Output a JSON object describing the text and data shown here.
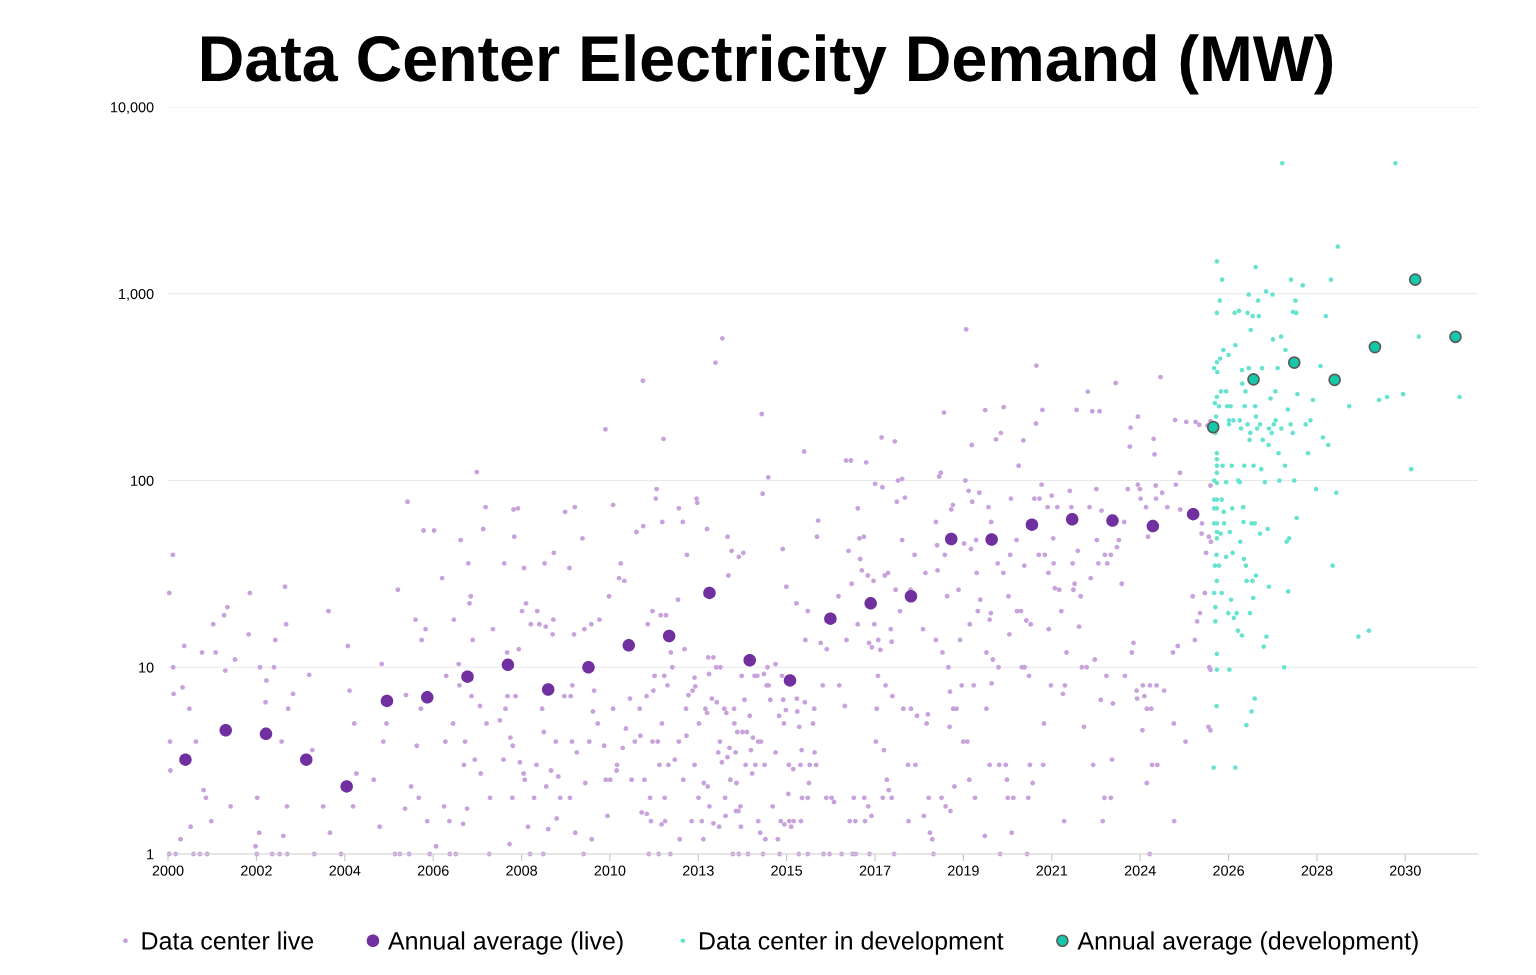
{
  "chart_data": {
    "type": "scatter",
    "title": "Data Center Electricity Demand (MW)",
    "log": "y",
    "grid": "y",
    "legend": "bottom",
    "marker": "circle",
    "xlim": [
      "2000-01-01",
      "2032-07-01"
    ],
    "ylim": [
      1,
      10000
    ],
    "xticks": [
      {
        "value": "2000-01-01",
        "label": "2000"
      },
      {
        "value": "2002-03-12",
        "label": "2002"
      },
      {
        "value": "2004-05-21",
        "label": "2004"
      },
      {
        "value": "2006-07-31",
        "label": "2006"
      },
      {
        "value": "2008-10-09",
        "label": "2008"
      },
      {
        "value": "2010-12-18",
        "label": "2010"
      },
      {
        "value": "2013-02-26",
        "label": "2013"
      },
      {
        "value": "2015-05-07",
        "label": "2015"
      },
      {
        "value": "2017-07-17",
        "label": "2017"
      },
      {
        "value": "2019-09-25",
        "label": "2019"
      },
      {
        "value": "2021-12-04",
        "label": "2021"
      },
      {
        "value": "2024-02-13",
        "label": "2024"
      },
      {
        "value": "2026-04-24",
        "label": "2026"
      },
      {
        "value": "2028-07-03",
        "label": "2028"
      },
      {
        "value": "2030-09-11",
        "label": "2030"
      }
    ],
    "yticks": [
      1,
      10,
      100,
      {
        "value": 1000,
        "label": "1,000"
      },
      {
        "value": 10000,
        "label": "10,000"
      }
    ],
    "series": [
      {
        "name": "Data center live",
        "color": "#c8a2dc",
        "x": [
          "2000-01-12",
          "2000-02-14",
          "2000-02-17",
          "2000-02-21",
          "2000-01-19",
          "2000-01-23",
          "2000-05-27",
          "2000-05-12",
          "2000-07-13",
          "2000-04-24",
          "2000-07-24",
          "2000-01-12",
          "2000-08-19",
          "2001-02-14",
          "2001-06-22",
          "2001-05-23",
          "2000-11-04",
          "2001-03-08",
          "2000-09-10",
          "2000-11-18",
          "2000-12-10",
          "2001-01-27",
          "2001-07-21",
          "2001-08-30",
          "2001-06-03",
          "2002-01-12",
          "2002-01-01",
          "2002-04-13",
          "2002-06-11",
          "2002-06-03",
          "2002-03-19",
          "2002-04-06",
          "2002-03-04",
          "2002-08-01",
          "2002-11-26",
          "2002-12-06",
          "2002-08-30",
          "2002-08-19",
          "2002-12-25",
          "2003-02-07",
          "2002-10-27",
          "2002-11-11",
          "2002-12-14",
          "2003-07-03",
          "2003-08-01",
          "2003-12-25",
          "2003-11-07",
          "2004-01-08",
          "2004-04-17",
          "2004-06-18",
          "2004-07-03",
          "2004-08-15",
          "2004-08-04",
          "2004-09-03",
          "2005-02-07",
          "2005-04-21",
          "2005-04-02",
          "2005-05-05",
          "2005-06-03",
          "2005-08-19",
          "2005-09-14",
          "2005-12-10",
          "2005-11-26",
          "2005-11-18",
          "2006-02-21",
          "2006-04-17",
          "2006-05-05",
          "2006-08-08",
          "2006-05-23",
          "2006-04-10",
          "2006-03-04",
          "2006-01-12",
          "2006-03-22",
          "2006-06-07",
          "2006-08-26",
          "2006-10-20",
          "2007-02-03",
          "2006-11-26",
          "2006-11-18",
          "2007-01-27",
          "2006-11-07",
          "2006-12-25",
          "2007-04-06",
          "2007-06-14",
          "2007-06-25",
          "2007-07-06",
          "2007-07-24",
          "2007-03-19",
          "2007-03-26",
          "2007-07-13",
          "2007-05-16",
          "2007-05-05",
          "2007-06-03",
          "2007-04-28",
          "2007-08-30",
          "2007-11-18",
          "2007-10-27",
          "2008-01-23",
          "2007-09-28",
          "2007-11-26",
          "2007-08-12",
          "2007-10-05",
          "2007-12-21",
          "2008-05-05",
          "2008-04-28",
          "2007-12-28",
          "2000-03-11",
          "2000-10-16",
          "2000-12-21",
          "2002-03-15",
          "2002-10-09",
          "2002-12-17",
          "2003-08-19",
          "2005-10-02",
          "2005-12-25",
          "2006-06-29",
          "2006-12-28",
          "2007-02-21",
          "2010-11-07",
          "2011-10-13",
          "2012-04-17",
          "2013-08-01",
          "2013-10-02",
          "2014-09-24",
          "2015-10-13",
          "2016-10-27",
          "2016-12-10",
          "2014-11-22",
          "2014-10-02",
          "2012-02-14",
          "2012-02-07",
          "2008-07-28",
          "2008-09-06",
          "2009-11-07",
          "2010-02-03",
          "2011-01-16",
          "2008-08-04",
          "2008-10-31",
          "2009-05-05",
          "2009-07-28",
          "2009-12-17",
          "2010-04-13",
          "2011-08-15",
          "2011-10-16",
          "2012-04-06",
          "2012-10-09",
          "2012-09-03",
          "2013-02-10",
          "2013-02-17",
          "2013-05-16",
          "2012-11-15",
          "2011-03-26",
          "2011-04-28",
          "2011-03-11",
          "2010-12-10",
          "2013-11-18",
          "2013-12-25",
          "2014-04-10",
          "2014-02-28",
          "2013-11-26",
          "2015-04-02",
          "2015-05-05",
          "2016-02-17",
          "2016-02-07",
          "2017-02-10",
          "2016-11-18",
          "2016-12-17",
          "2016-10-31",
          "2016-08-19",
          "2015-08-04",
          "2015-11-15",
          "2015-10-24",
          "2016-03-11",
          "2016-05-05",
          "2012-08-26",
          "2012-03-22",
          "2012-05-09",
          "2011-11-26",
          "2012-01-08",
          "2010-09-14",
          "2010-07-03",
          "2010-05-01",
          "2010-01-27",
          "2009-07-17",
          "2009-07-24",
          "2009-02-28",
          "2008-11-18",
          "2008-10-13",
          "2009-01-01",
          "2009-03-19",
          "2009-05-16",
          "2008-09-14",
          "2008-05-31",
          "2008-03-26",
          "2008-06-03",
          "2008-08-15",
          "2008-05-16",
          "2008-06-29",
          "2008-07-21",
          "2008-09-24",
          "2008-10-27",
          "2008-11-07",
          "2009-02-21",
          "2009-07-03",
          "2009-09-06",
          "2009-05-20",
          "2008-12-06",
          "2008-06-22",
          "2008-07-17",
          "2009-01-30",
          "2009-09-24",
          "2009-12-21",
          "2009-06-07",
          "2009-08-23",
          "2010-02-07",
          "2010-07-06",
          "2008-12-25",
          "2009-04-24",
          "2010-04-24",
          "2009-08-15",
          "2010-01-08",
          "2010-02-21",
          "2009-04-13",
          "2009-04-28",
          "2009-10-31",
          "2009-12-28",
          "2010-01-12",
          "2010-06-14",
          "2010-05-09",
          "2010-07-17",
          "2010-07-28",
          "2010-08-30",
          "2010-10-27",
          "2010-11-11",
          "2010-12-21",
          "2010-11-26",
          "2011-01-16",
          "2011-02-21",
          "2011-02-17",
          "2011-04-13",
          "2011-06-18",
          "2011-05-12",
          "2011-07-03",
          "2011-09-14",
          "2011-09-21",
          "2011-08-01",
          "2011-11-15",
          "2012-01-16",
          "2012-01-27",
          "2012-04-02",
          "2012-01-08",
          "2012-02-25",
          "2012-03-11",
          "2011-10-27",
          "2011-10-02",
          "2011-11-18",
          "2011-12-25",
          "2012-03-30",
          "2012-05-01",
          "2011-12-17",
          "2012-04-28",
          "2012-09-10",
          "2011-12-06",
          "2012-03-04",
          "2012-06-18",
          "2012-04-24",
          "2012-05-23",
          "2012-06-22",
          "2012-07-06",
          "2012-09-03",
          "2012-05-31",
          "2012-07-28",
          "2012-10-13",
          "2012-11-07",
          "2012-10-24",
          "2012-11-11",
          "2012-11-29",
          "2013-01-05",
          "2013-01-23",
          "2013-01-30",
          "2013-01-23",
          "2013-03-04",
          "2012-12-28",
          "2013-03-30",
          "2013-04-13",
          "2013-02-28",
          "2013-05-01",
          "2013-05-16",
          "2013-04-17",
          "2013-05-23",
          "2013-06-07",
          "2013-05-27",
          "2013-07-13",
          "2013-06-03",
          "2013-06-29",
          "2013-07-13",
          "2013-08-12",
          "2013-08-26",
          "2013-09-03",
          "2013-09-10",
          "2013-08-08",
          "2013-09-14",
          "2013-09-28",
          "2013-10-20",
          "2013-11-07",
          "2013-10-31",
          "2013-10-27",
          "2013-11-18",
          "2013-12-06",
          "2013-12-14",
          "2014-01-16",
          "2014-01-19",
          "2014-01-30",
          "2014-02-07",
          "2014-02-03",
          "2014-02-25",
          "2014-03-15",
          "2014-03-19",
          "2014-01-05",
          "2014-02-28",
          "2014-05-23",
          "2014-02-14",
          "2014-04-02",
          "2014-05-12",
          "2014-07-06",
          "2014-08-23",
          "2014-09-17",
          "2014-06-18",
          "2014-06-29",
          "2014-05-01",
          "2014-07-28",
          "2014-10-20",
          "2014-06-07",
          "2014-04-21",
          "2014-03-26",
          "2014-07-21",
          "2014-08-15",
          "2014-10-13",
          "2014-11-07",
          "2014-11-26",
          "2014-11-15",
          "2015-01-27",
          "2014-12-10",
          "2015-01-27",
          "2015-01-01",
          "2014-09-10",
          "2014-10-27",
          "2014-08-23",
          "2014-10-05",
          "2015-02-28",
          "2015-02-17",
          "2015-03-04",
          "2015-03-15",
          "2015-04-17",
          "2015-05-31",
          "2015-06-18",
          "2015-07-10",
          "2015-09-14",
          "2015-05-23",
          "2015-03-26",
          "2015-04-06",
          "2015-05-01",
          "2015-04-13",
          "2015-05-27",
          "2015-07-06",
          "2015-08-08",
          "2015-08-12",
          "2015-08-30",
          "2015-09-21",
          "2015-09-10",
          "2015-09-24",
          "2015-10-20",
          "2015-11-15",
          "2015-11-26",
          "2016-01-16",
          "2015-12-03",
          "2016-01-01",
          "2016-01-12",
          "2016-01-30",
          "2016-03-30",
          "2016-05-01",
          "2016-06-18",
          "2016-07-10",
          "2016-08-26",
          "2016-10-16",
          "2016-11-29",
          "2017-01-05",
          "2015-08-26",
          "2015-11-15",
          "2016-04-06",
          "2016-05-31",
          "2016-09-17",
          "2016-12-25",
          "2019-10-20",
          "2021-07-17",
          "2024-08-15",
          "2023-07-06",
          "2022-10-27",
          "2019-04-02",
          "2020-04-10",
          "2020-09-24",
          "2021-09-10",
          "2022-07-17",
          "2022-12-06",
          "2023-02-10",
          "2024-01-23",
          "2021-07-13",
          "2020-08-30",
          "2017-09-14",
          "2018-01-12",
          "2019-12-10",
          "2020-07-17",
          "2021-03-22",
          "2023-11-18",
          "2023-11-11",
          "2024-12-25",
          "2025-04-06",
          "2025-06-29",
          "2025-08-01",
          "2024-06-14",
          "2024-06-22",
          "2017-04-28",
          "2019-03-04",
          "2019-02-17",
          "2018-03-19",
          "2018-02-10",
          "2019-10-13",
          "2017-07-17",
          "2017-09-21",
          "2018-04-13",
          "2018-01-30",
          "2019-11-11",
          "2019-12-14",
          "2020-02-17",
          "2020-05-09",
          "2019-06-22",
          "2019-06-07",
          "2019-01-19",
          "2020-06-03",
          "2017-04-06",
          "2017-02-25",
          "2018-03-19",
          "2019-01-30",
          "2019-04-10",
          "2019-10-02",
          "2019-12-03",
          "2020-01-19",
          "2021-01-19",
          "2020-11-29",
          "2021-02-07",
          "2021-06-29",
          "2021-08-15",
          "2021-09-03",
          "2021-10-27",
          "2021-12-03",
          "2022-01-23",
          "2021-12-17",
          "2022-05-16",
          "2022-05-31",
          "2023-01-12",
          "2022-11-11",
          "2023-02-28",
          "2023-09-21",
          "2023-10-24",
          "2024-01-23",
          "2024-02-10",
          "2024-02-17",
          "2024-04-06",
          "2024-07-03",
          "2024-07-06",
          "2024-08-30",
          "2024-10-16",
          "2025-01-01",
          "2025-02-07",
          "2025-02-10",
          "2025-08-23",
          "2025-10-27",
          "2024-04-24",
          "2023-08-04",
          "2023-05-23",
          "2023-01-16",
          "2023-03-30",
          "2023-07-17",
          "2023-08-30",
          "2023-01-30",
          "2023-04-21",
          "2022-11-22",
          "2022-08-23",
          "2022-06-29",
          "2022-06-18",
          "2022-06-11",
          "2022-07-28",
          "2021-12-21",
          "2021-11-04",
          "2022-01-01",
          "2022-02-10",
          "2022-02-28",
          "2021-10-02",
          "2021-08-08",
          "2021-03-30",
          "2020-11-22",
          "2020-11-07",
          "2020-09-21",
          "2020-08-01",
          "2020-05-31",
          "2020-05-20",
          "2020-02-25",
          "2020-02-03",
          "2020-01-23",
          "2019-08-12",
          "2019-05-01",
          "2019-02-03",
          "2019-01-19",
          "2018-10-16",
          "2018-07-10",
          "2018-06-03",
          "2018-01-19",
          "2018-02-28",
          "2017-10-13",
          "2017-11-11",
          "2017-05-12",
          "2017-03-19",
          "2017-03-04",
          "2017-07-03",
          "2017-07-10",
          "2017-05-23",
          "2017-06-18",
          "2017-08-15",
          "2017-09-03",
          "2017-12-06",
          "2017-12-14",
          "2017-02-10",
          "2018-09-24",
          "2019-11-22",
          "2019-08-26",
          "2020-04-21",
          "2020-06-18",
          "2020-08-08",
          "2020-11-15",
          "2021-01-23",
          "2021-02-28",
          "2021-04-17",
          "2021-05-27",
          "2021-11-07",
          "2022-04-17",
          "2022-08-08",
          "2022-09-03",
          "2022-10-16",
          "2022-12-28",
          "2023-11-29",
          "2023-12-14",
          "2024-12-06",
          "2025-01-19",
          "2025-03-30",
          "2025-06-22",
          "2024-12-14",
          "2025-10-31",
          "2025-10-24",
          "2017-08-12",
          "2017-10-20",
          "2017-12-21",
          "2017-08-01",
          "2018-03-30",
          "2018-06-07",
          "2018-08-01",
          "2018-11-07",
          "2018-10-27",
          "2017-07-24",
          "2017-10-05",
          "2017-10-31",
          "2017-11-18",
          "2017-09-24",
          "2017-12-14",
          "2017-04-10",
          "2017-05-16",
          "2017-06-14",
          "2017-01-19",
          "2017-04-17",
          "2017-01-23",
          "2017-05-27",
          "2018-01-05",
          "2018-05-12",
          "2018-07-17",
          "2018-05-16",
          "2018-10-02",
          "2018-11-26",
          "2018-12-17",
          "2018-12-28",
          "2018-11-15",
          "2019-03-11",
          "2019-04-17",
          "2019-05-31",
          "2019-05-23",
          "2019-05-27",
          "2019-05-12",
          "2019-06-25",
          "2019-07-24",
          "2019-07-06",
          "2019-03-19",
          "2019-09-10",
          "2019-09-24",
          "2019-10-31",
          "2019-11-18",
          "2020-01-08",
          "2019-12-28",
          "2020-04-21",
          "2020-06-07",
          "2020-04-06",
          "2020-05-20",
          "2020-08-23",
          "2020-08-15",
          "2020-10-13",
          "2020-10-24",
          "2020-10-31",
          "2020-12-21",
          "2020-12-06",
          "2021-03-08",
          "2021-04-02",
          "2021-05-12",
          "2021-05-20",
          "2021-05-05",
          "2021-06-14",
          "2021-04-24",
          "2021-09-17",
          "2021-09-24",
          "2021-11-26",
          "2022-04-02",
          "2022-03-15",
          "2022-03-26",
          "2022-09-21",
          "2022-12-14",
          "2023-02-21",
          "2023-04-13",
          "2023-06-11",
          "2023-06-03",
          "2023-03-26",
          "2023-05-23",
          "2023-03-11",
          "2023-09-28",
          "2024-01-12",
          "2024-03-08",
          "2024-03-22",
          "2024-01-16",
          "2024-04-13",
          "2024-05-23",
          "2024-05-12",
          "2024-07-10",
          "2024-09-17",
          "2024-03-04",
          "2024-05-31",
          "2024-07-17",
          "2024-04-13",
          "2024-05-09",
          "2024-12-17",
          "2025-11-11",
          "2025-10-16",
          "2025-11-11",
          "2025-08-26",
          "2025-11-15",
          "2025-10-02",
          "2025-06-03",
          "2025-09-21",
          "2025-08-08",
          "2025-07-13",
          "2025-11-11",
          "2025-11-11"
        ],
        "values": [
          25,
          40,
          10,
          7.2,
          4,
          2.8,
          13,
          7.8,
          6,
          1.2,
          1.4,
          1,
          1,
          17,
          21,
          19,
          12,
          12,
          4,
          2.2,
          2,
          1.5,
          1.8,
          11,
          9.6,
          25,
          15,
          10,
          8.5,
          6.5,
          2,
          1.3,
          1.1,
          1,
          27,
          17,
          14,
          10,
          6,
          7.2,
          4,
          1.25,
          1.8,
          9.1,
          3.6,
          20,
          1.8,
          1.3,
          1,
          13,
          7.5,
          5,
          1.8,
          2.7,
          2.5,
          10.4,
          1.4,
          4,
          5,
          1,
          26,
          77,
          7.1,
          1.75,
          18,
          14,
          54,
          54,
          16,
          6,
          3.8,
          2.3,
          2,
          1.5,
          1.1,
          30,
          18,
          9,
          4,
          5,
          1.8,
          1.5,
          48,
          36,
          22,
          24,
          14,
          10.4,
          8,
          7,
          4,
          3,
          1.75,
          1.45,
          111,
          72,
          55,
          16,
          6.2,
          5,
          3.2,
          2.7,
          1,
          36,
          3.2,
          2,
          1,
          1,
          1,
          1,
          1,
          1,
          1,
          1,
          1,
          1,
          1,
          1,
          188,
          342,
          167,
          428,
          577,
          227,
          143,
          128,
          128,
          104,
          85,
          90,
          80,
          70,
          71,
          68,
          72,
          74,
          50,
          34,
          36,
          41,
          34,
          49,
          53,
          57,
          60,
          60,
          71,
          80,
          76,
          55,
          40,
          36,
          29,
          30,
          24,
          50,
          42,
          41,
          39,
          31,
          43,
          27,
          61,
          50,
          71,
          42,
          28,
          14,
          24,
          22,
          20,
          14,
          13.5,
          12.5,
          23,
          19,
          19,
          17,
          20,
          18,
          17,
          16,
          15,
          15,
          18,
          20,
          22,
          20,
          17,
          17,
          16.5,
          12.5,
          12,
          5.2,
          7,
          7,
          6,
          4.2,
          3.8,
          3.1,
          2.7,
          2.5,
          3,
          2.8,
          2.6,
          2.3,
          1.4,
          1.13,
          2,
          2,
          2,
          2,
          1.36,
          1.55,
          1.3,
          1.2,
          1,
          1,
          1,
          4,
          4,
          3.5,
          6,
          4.5,
          7,
          7,
          8,
          4,
          2.4,
          5.8,
          7.5,
          5,
          3.8,
          2.5,
          2.5,
          1.6,
          6,
          3,
          2.8,
          3.7,
          6.8,
          4.7,
          2.5,
          6,
          4.3,
          4,
          7,
          7.5,
          9,
          5,
          4,
          4,
          3,
          2.5,
          1.67,
          1.64,
          1.5,
          1.44,
          1.5,
          2,
          2,
          1.2,
          1,
          1,
          1,
          9,
          8,
          12,
          10,
          4,
          3,
          3.2,
          2.5,
          6,
          12.5,
          4.3,
          7.1,
          7.5,
          8.8,
          7.9,
          3,
          5,
          1.5,
          1.5,
          1.2,
          2,
          6,
          5.7,
          2.4,
          2.3,
          1.8,
          11.3,
          11.3,
          9.2,
          6.8,
          1.46,
          6.5,
          3.5,
          1.4,
          4,
          10,
          10,
          3.1,
          6,
          5.7,
          1.6,
          2,
          3.3,
          3.7,
          2.5,
          6,
          5,
          3.5,
          2.4,
          1.7,
          1.7,
          1.8,
          1.4,
          1,
          1,
          1,
          4.5,
          4.5,
          4.5,
          4.2,
          4,
          4,
          3.6,
          2.7,
          3,
          3,
          3,
          5.5,
          6.7,
          9,
          9,
          9,
          9.2,
          8,
          8,
          10,
          10.4,
          6.7,
          3.5,
          1.8,
          1.3,
          1.2,
          1.5,
          1,
          5.5,
          1.2,
          1,
          1.5,
          1.44,
          1.5,
          1.4,
          1.5,
          1.5,
          2.1,
          9,
          6.7,
          5.9,
          5,
          3,
          2.85,
          6.8,
          5.8,
          4.8,
          3.6,
          3,
          2,
          6.5,
          2,
          2.4,
          3.5,
          3,
          5,
          6,
          3,
          8,
          2,
          2,
          1.9,
          8,
          6.2,
          1.5,
          2,
          1,
          1,
          1,
          1,
          1,
          1,
          645,
          412,
          358,
          333,
          299,
          231,
          238,
          247,
          239,
          239,
          235,
          235,
          220,
          202,
          180,
          170,
          162,
          155,
          166,
          164,
          192,
          152,
          211,
          206,
          206,
          199,
          167,
          138,
          125,
          110,
          105,
          102,
          100,
          100,
          96,
          92,
          81,
          77,
          88,
          77,
          86,
          72,
          74,
          70,
          60,
          60,
          50,
          49,
          48,
          45,
          40,
          46,
          43,
          48,
          48,
          80,
          120,
          80,
          80,
          95,
          72,
          83,
          72,
          49,
          88,
          72,
          90,
          72,
          69,
          60,
          90,
          95,
          90,
          80,
          72,
          94,
          80,
          86,
          72,
          95,
          110,
          70,
          52,
          50,
          50,
          48,
          40,
          48,
          40,
          44,
          28,
          36,
          36,
          30,
          24,
          28,
          26,
          36,
          42,
          36,
          32,
          26.5,
          26,
          20,
          40,
          40,
          35,
          40,
          24,
          32,
          36,
          19.5,
          18,
          23,
          20,
          32,
          26,
          24,
          33,
          14,
          32,
          40,
          26,
          26,
          20,
          31,
          32,
          31,
          33,
          38,
          29,
          17,
          13.5,
          12.8,
          14,
          12.4,
          16,
          13.7,
          17,
          16,
          17,
          14,
          12,
          11,
          10,
          15,
          20,
          20,
          17.8,
          17,
          16,
          12,
          16.5,
          10,
          10,
          11,
          12,
          13.5,
          12,
          13,
          4,
          14,
          5,
          10,
          4.8,
          9,
          8,
          7,
          6,
          6,
          6,
          5.5,
          5.6,
          5,
          4,
          3.6,
          2.5,
          2.2,
          2,
          2,
          2,
          1.8,
          1.6,
          1.5,
          1.5,
          1,
          1,
          1,
          3,
          3,
          1.5,
          1.6,
          1.3,
          1.2,
          1,
          2,
          2,
          1.8,
          1.7,
          4.8,
          7.4,
          10,
          6,
          6,
          2.3,
          12,
          8,
          4,
          4,
          2.5,
          2,
          8,
          6,
          8.2,
          1.25,
          3,
          1,
          3,
          3,
          2.5,
          2,
          2,
          1.3,
          10,
          10,
          9,
          3,
          2,
          2.4,
          1,
          3,
          5,
          8,
          8,
          7.2,
          1.5,
          4.8,
          3,
          6.7,
          9,
          6.4,
          3.2,
          2,
          2,
          1.5,
          9,
          7.5,
          8,
          7,
          6.8,
          6,
          6,
          8,
          8,
          7.5,
          4.6,
          3,
          3,
          2.4,
          1,
          1.5,
          208,
          197,
          94,
          59,
          47,
          41,
          24,
          25,
          19.5,
          17.6,
          9.7,
          4.6
        ]
      },
      {
        "name": "Annual average (live)",
        "color": "#7030a0",
        "x": [
          "2000-06-07",
          "2001-06-07",
          "2002-06-07",
          "2003-06-07",
          "2004-06-07",
          "2005-06-07",
          "2006-06-07",
          "2007-06-07",
          "2008-06-07",
          "2009-06-07",
          "2010-06-07",
          "2011-06-07",
          "2012-06-07",
          "2013-06-07",
          "2014-06-07",
          "2015-06-07",
          "2016-06-07",
          "2017-06-07",
          "2018-06-07",
          "2019-06-07",
          "2020-06-07",
          "2021-06-07",
          "2022-06-07",
          "2023-06-07",
          "2024-06-07",
          "2025-06-07"
        ],
        "values": [
          3.2,
          4.6,
          4.4,
          3.2,
          2.3,
          6.6,
          6.9,
          8.9,
          10.3,
          7.6,
          10,
          13.1,
          14.7,
          25,
          10.9,
          8.5,
          18.2,
          22,
          24,
          48.6,
          48.3,
          58,
          62,
          61,
          57,
          66
        ]
      },
      {
        "name": "Data center in development",
        "color": "#66e3cf",
        "x": [
          "2027-08-23",
          "2030-06-14",
          "2029-01-08",
          "2026-01-08",
          "2026-12-25",
          "2026-02-25",
          "2027-11-11",
          "2028-11-07",
          "2028-02-25",
          "2027-03-30",
          "2026-10-24",
          "2027-05-27",
          "2026-02-03",
          "2027-01-16",
          "2027-12-21",
          "2026-01-08",
          "2026-06-18",
          "2026-07-28",
          "2026-10-13",
          "2026-11-29",
          "2027-01-23",
          "2027-11-29",
          "2027-12-28",
          "2028-09-21",
          "2026-11-11",
          "2027-08-12",
          "2027-05-31",
          "2026-06-25",
          "2027-09-21",
          "2026-03-08",
          "2026-04-24",
          "2026-02-07",
          "2026-01-08",
          "2028-08-04",
          "2025-12-14",
          "2026-01-12",
          "2026-08-23",
          "2026-10-24",
          "2027-02-21",
          "2027-07-13",
          "2026-08-26",
          "2026-02-14",
          "2026-04-02",
          "2026-09-24",
          "2026-01-08",
          "2027-06-22",
          "2027-05-09",
          "2028-01-08",
          "2028-05-27",
          "2029-04-21",
          "2030-01-16",
          "2030-03-30",
          "2030-08-23",
          "2032-01-16",
          "2031-01-12",
          "2025-12-21",
          "2026-01-27",
          "2026-04-10",
          "2026-05-12",
          "2026-09-17",
          "2026-12-21",
          "2026-12-28",
          "2027-02-03",
          "2027-06-07",
          "2027-06-25",
          "2027-10-13",
          "2028-05-05",
          "2028-03-22",
          "2027-11-07",
          "2027-08-15",
          "2027-04-24",
          "2027-01-08",
          "2026-10-13",
          "2026-08-15",
          "2026-04-28",
          "2026-06-07",
          "2026-08-04",
          "2026-04-28",
          "2026-01-01",
          "2026-01-08",
          "2025-12-25",
          "2026-11-07",
          "2027-05-20",
          "2027-11-26",
          "2027-02-28",
          "2026-10-31",
          "2027-04-21",
          "2028-08-26",
          "2028-10-13",
          "2028-04-13",
          "2027-07-21",
          "2027-09-17",
          "2027-02-14",
          "2026-12-06",
          "2026-09-14",
          "2026-05-23",
          "2026-02-28",
          "2026-01-08",
          "2026-01-08",
          "2026-01-08",
          "2026-01-08",
          "2025-12-14",
          "2026-07-21",
          "2026-01-08",
          "2026-04-02",
          "2026-08-04",
          "2027-03-19",
          "2027-07-28",
          "2027-12-10",
          "2028-06-25",
          "2028-12-25",
          "2030-11-04",
          "2028-01-01",
          "2025-12-14",
          "2026-01-08",
          "2026-02-21",
          "2025-12-14",
          "2026-01-08",
          "2026-03-11",
          "2026-05-27",
          "2026-09-03",
          "2025-12-14",
          "2026-01-08",
          "2026-03-15",
          "2026-09-06",
          "2026-11-18",
          "2026-12-17",
          "2026-01-08",
          "2026-02-10",
          "2026-05-05",
          "2027-02-03",
          "2027-04-13",
          "2026-08-08",
          "2026-01-08",
          "2027-10-24",
          "2027-10-02",
          "2026-01-05",
          "2026-04-02",
          "2026-05-31",
          "2026-09-10",
          "2026-09-28",
          "2025-12-21",
          "2026-01-27",
          "2028-11-22",
          "2026-12-28",
          "2026-10-05",
          "2026-11-26",
          "2026-01-08",
          "2027-10-16",
          "2027-04-24",
          "2025-12-14",
          "2026-02-21",
          "2026-12-03",
          "2026-05-16",
          "2025-12-25",
          "2026-04-21",
          "2026-07-06",
          "2026-11-04",
          "2026-06-11",
          "2025-12-25",
          "2026-07-17",
          "2026-08-23",
          "2027-04-02",
          "2027-03-08",
          "2026-01-08",
          "2026-01-08",
          "2026-05-01",
          "2027-09-10",
          "2029-07-13",
          "2029-10-16",
          "2026-01-05",
          "2026-12-17",
          "2026-11-18",
          "2026-10-02",
          "2025-12-10",
          "2026-06-25"
        ],
        "values": [
          5000,
          5000,
          1790,
          1490,
          1390,
          1190,
          1190,
          1190,
          1110,
          1030,
          990,
          990,
          920,
          920,
          920,
          790,
          790,
          810,
          790,
          760,
          760,
          800,
          790,
          760,
          640,
          590,
          570,
          530,
          500,
          500,
          470,
          450,
          430,
          410,
          400,
          380,
          390,
          400,
          400,
          400,
          330,
          300,
          300,
          300,
          280,
          300,
          275,
          290,
          270,
          250,
          270,
          280,
          290,
          280,
          590,
          260,
          250,
          250,
          250,
          250,
          250,
          220,
          200,
          200,
          210,
          240,
          210,
          200,
          200,
          190,
          190,
          190,
          200,
          190,
          210,
          210,
          210,
          200,
          220,
          200,
          180,
          180,
          180,
          180,
          165,
          165,
          155,
          170,
          155,
          140,
          140,
          120,
          115,
          120,
          120,
          120,
          120,
          120,
          130,
          140,
          110,
          100,
          100,
          97,
          98,
          98,
          98,
          100,
          100,
          90,
          86,
          115,
          63,
          79,
          79,
          79,
          71,
          71,
          68,
          71,
          72,
          59,
          59,
          59,
          60,
          59,
          59,
          53,
          52,
          53,
          52,
          55,
          47,
          49,
          49,
          47,
          40,
          39,
          41,
          38,
          35,
          35,
          35,
          35,
          31,
          29,
          29,
          29,
          25.5,
          27,
          25,
          25,
          23.5,
          23,
          21,
          19.5,
          19.5,
          19.5,
          18.4,
          17.6,
          15.7,
          14.8,
          14.6,
          12.9,
          11.8,
          9.7,
          9.7,
          10,
          14.6,
          15.7,
          6.2,
          6.8,
          5.8,
          4.9,
          2.9,
          2.9
        ]
      },
      {
        "name": "Annual average (development)",
        "color": "#14c8aa",
        "x": [
          "2025-12-06",
          "2026-12-06",
          "2027-12-10",
          "2028-12-10",
          "2029-12-10",
          "2030-12-10",
          "2031-12-10"
        ],
        "values": [
          193,
          348,
          428,
          346,
          518,
          1190,
          588
        ]
      }
    ]
  }
}
